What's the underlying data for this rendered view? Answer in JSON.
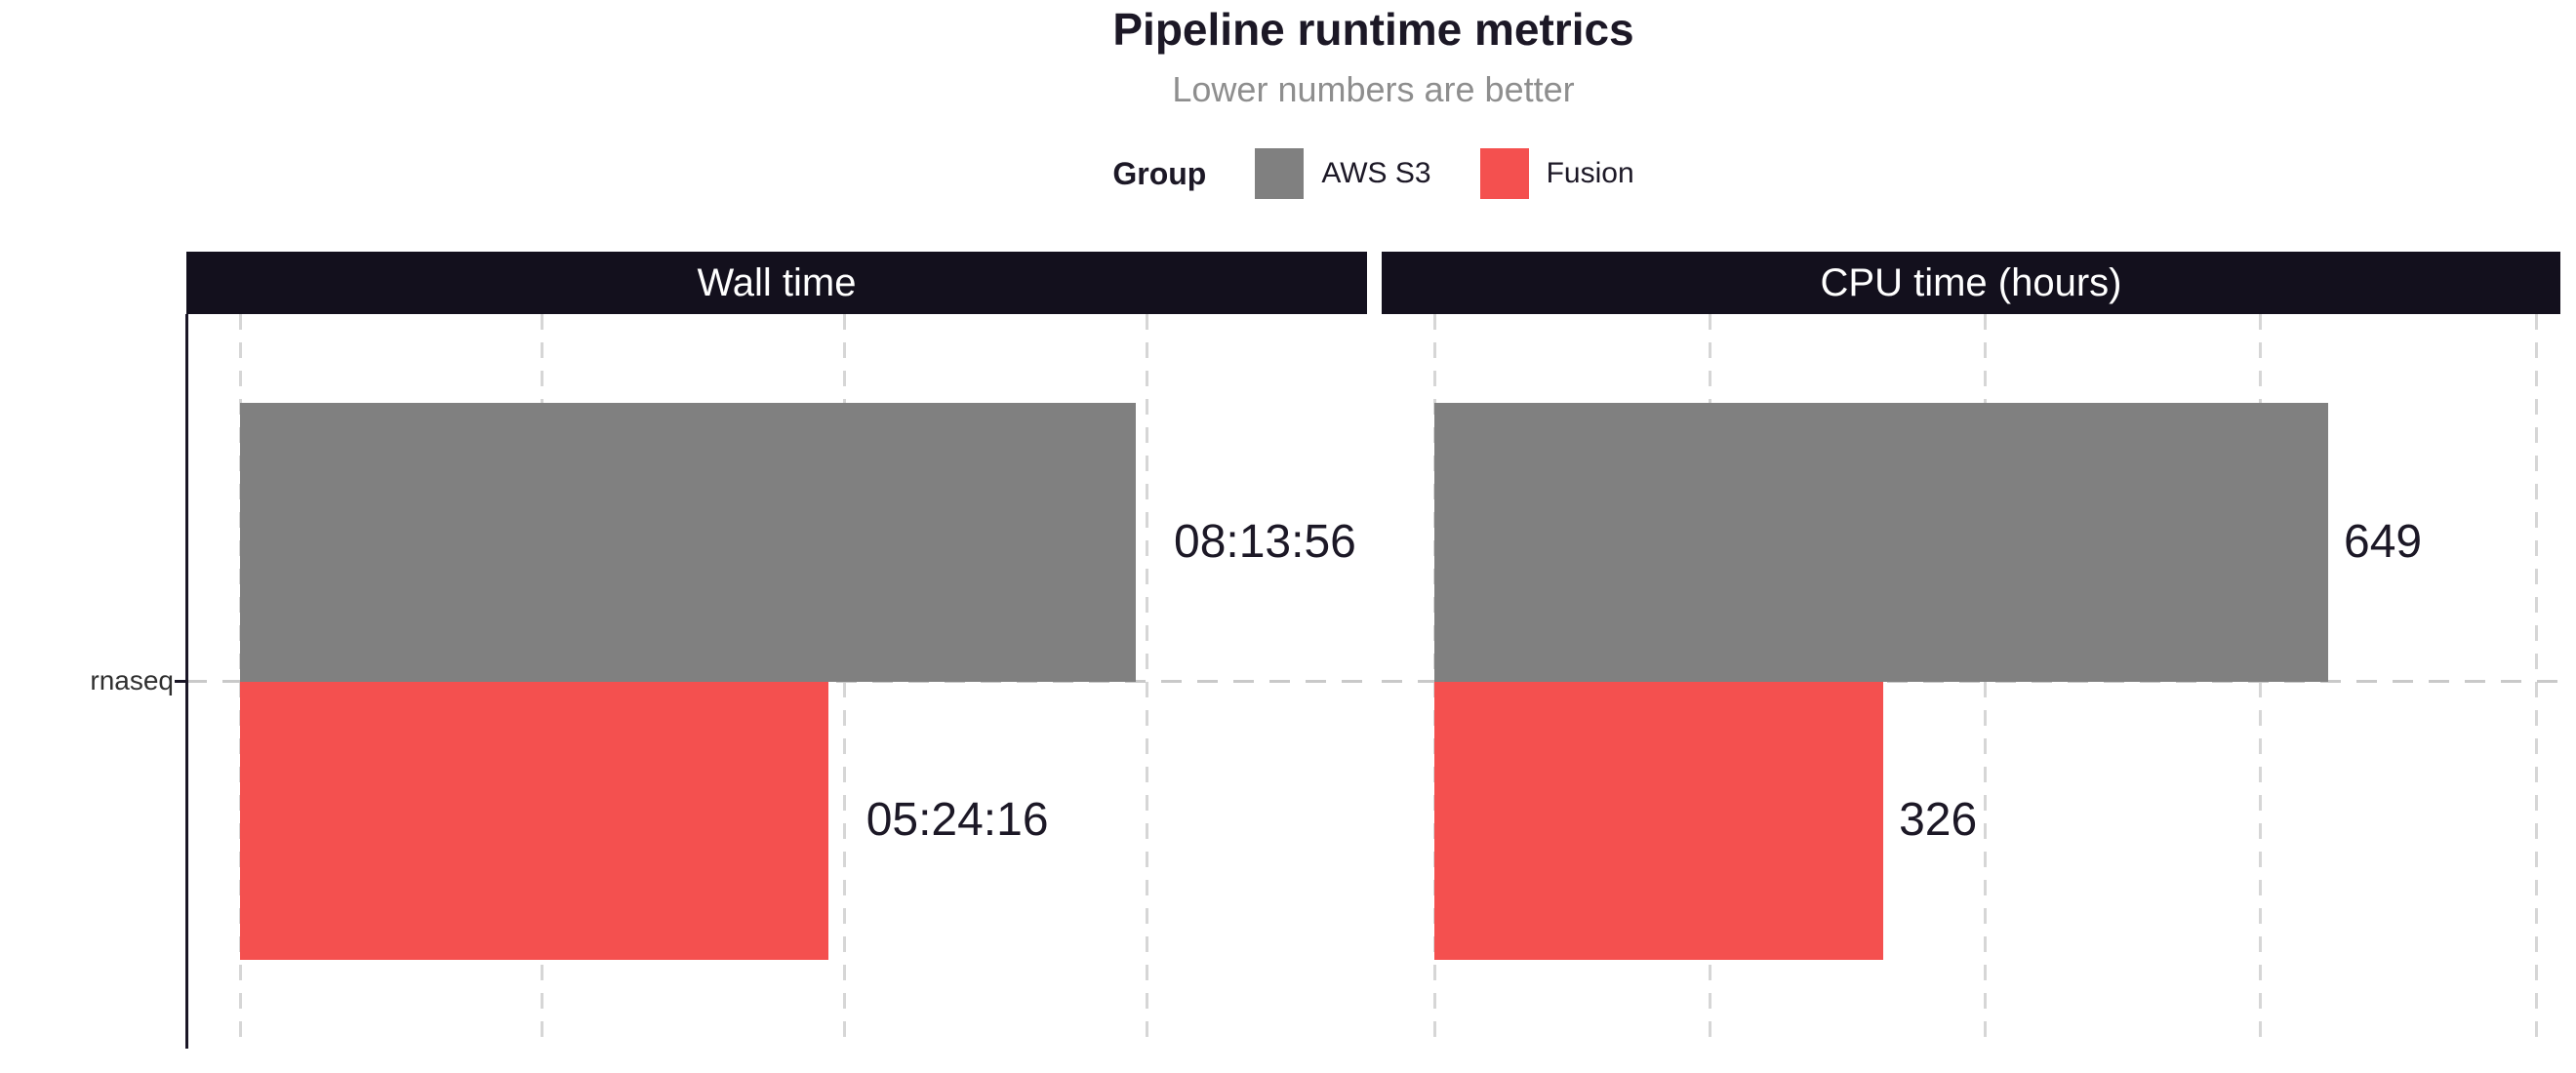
{
  "chart_data": {
    "type": "bar",
    "orientation": "horizontal",
    "title": "Pipeline runtime metrics",
    "subtitle": "Lower numbers are better",
    "legend_title": "Group",
    "legend_position": "top",
    "grid": "dashed-vertical",
    "categories": [
      "rnaseq"
    ],
    "series": [
      {
        "name": "AWS S3",
        "color": "#808080"
      },
      {
        "name": "Fusion",
        "color": "#f4504f"
      }
    ],
    "facets": [
      {
        "label": "Wall time",
        "unit": "seconds",
        "bars": [
          {
            "group": "AWS S3",
            "value": 29636,
            "label": "08:13:56"
          },
          {
            "group": "Fusion",
            "value": 19456,
            "label": "05:24:16"
          }
        ],
        "axis": {
          "min": 0,
          "grid_step": 10000,
          "grid_lines": [
            0,
            10000,
            20000,
            30000
          ]
        }
      },
      {
        "label": "CPU time (hours)",
        "unit": "hours",
        "bars": [
          {
            "group": "AWS S3",
            "value": 649,
            "label": "649"
          },
          {
            "group": "Fusion",
            "value": 326,
            "label": "326"
          }
        ],
        "axis": {
          "min": 0,
          "grid_step": 200,
          "grid_lines": [
            0,
            200,
            400,
            600,
            800
          ]
        }
      }
    ],
    "colors": {
      "strip_background": "#13101d",
      "strip_text": "#ffffff",
      "gridline": "#d6d6d6",
      "category_midline": "#c9c9c9",
      "axis": "#1a1626",
      "bar_label": "#1c1826",
      "title": "#1c1826",
      "subtitle": "#8e8e8e",
      "tick_label": "#303030"
    }
  }
}
